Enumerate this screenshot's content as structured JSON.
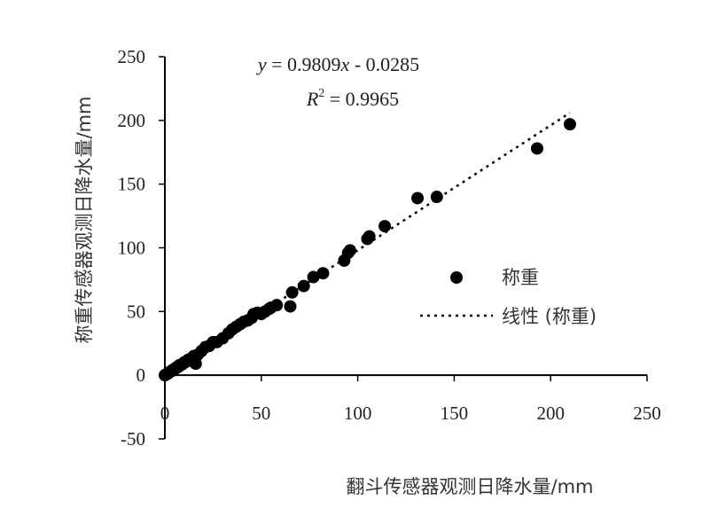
{
  "chart_data": {
    "type": "scatter",
    "xlabel": "翻斗传感器观测日降水量/mm",
    "ylabel": "称重传感器观测日降水量/mm",
    "xlim": [
      0,
      250
    ],
    "ylim": [
      -50,
      250
    ],
    "x_ticks": [
      "0",
      "50",
      "100",
      "150",
      "200",
      "250"
    ],
    "y_ticks": [
      "-50",
      "0",
      "50",
      "100",
      "150",
      "200",
      "250"
    ],
    "grid": false,
    "legend_position": "right",
    "series": [
      {
        "name": "称重",
        "style": "marker",
        "color": "#000000",
        "points": [
          [
            0,
            0
          ],
          [
            0.5,
            0.3
          ],
          [
            1,
            1
          ],
          [
            1.5,
            1.2
          ],
          [
            2,
            1.8
          ],
          [
            2.5,
            2.5
          ],
          [
            3,
            3
          ],
          [
            3.5,
            3.2
          ],
          [
            4,
            4
          ],
          [
            5,
            4.5
          ],
          [
            5.5,
            5.5
          ],
          [
            6,
            6
          ],
          [
            7,
            6.5
          ],
          [
            7.5,
            7.8
          ],
          [
            8,
            8
          ],
          [
            9,
            8.5
          ],
          [
            10,
            10
          ],
          [
            11,
            10.5
          ],
          [
            12,
            12
          ],
          [
            13,
            12.5
          ],
          [
            14,
            13.5
          ],
          [
            15,
            15
          ],
          [
            16,
            9
          ],
          [
            17,
            16
          ],
          [
            19,
            19
          ],
          [
            21,
            22
          ],
          [
            23,
            23
          ],
          [
            25,
            26
          ],
          [
            27,
            26
          ],
          [
            30,
            29
          ],
          [
            33,
            33
          ],
          [
            35,
            36
          ],
          [
            37,
            38
          ],
          [
            39,
            40
          ],
          [
            41,
            42
          ],
          [
            43,
            43
          ],
          [
            45,
            45
          ],
          [
            46,
            48
          ],
          [
            48,
            49
          ],
          [
            50,
            48
          ],
          [
            52,
            50
          ],
          [
            54,
            52
          ],
          [
            55,
            53
          ],
          [
            58,
            55
          ],
          [
            65,
            54
          ],
          [
            66,
            65
          ],
          [
            72,
            70
          ],
          [
            77,
            77
          ],
          [
            82,
            80
          ],
          [
            93,
            90
          ],
          [
            95,
            96
          ],
          [
            96,
            98
          ],
          [
            105,
            107
          ],
          [
            106,
            109
          ],
          [
            114,
            117
          ],
          [
            131,
            139
          ],
          [
            141,
            140
          ],
          [
            193,
            178
          ],
          [
            210,
            197
          ]
        ]
      },
      {
        "name": "线性 (称重)",
        "style": "dotted-line",
        "color": "#000000",
        "x": [
          0,
          210
        ],
        "y": [
          -0.0285,
          205.96
        ]
      }
    ],
    "annotations": {
      "equation_y": "y",
      "equation_rest": " = 0.9809",
      "equation_x": "x",
      "equation_tail": " - 0.0285",
      "r2_R": "R",
      "r2_sup": "2",
      "r2_rest": " = 0.9965"
    }
  }
}
